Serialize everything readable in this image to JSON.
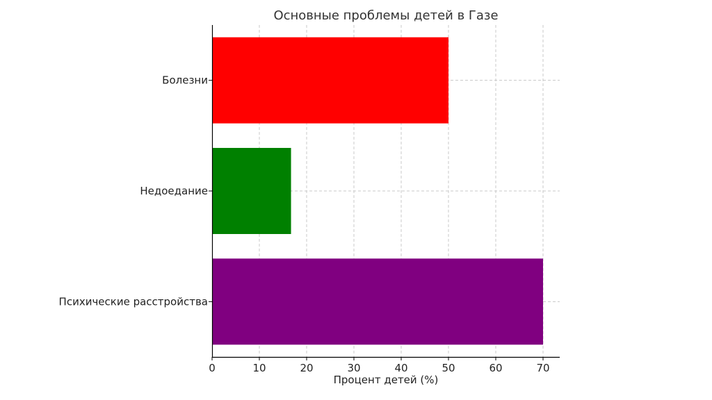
{
  "chart_data": {
    "type": "bar",
    "orientation": "horizontal",
    "title": "Основные проблемы детей в Газе",
    "xlabel": "Процент детей (%)",
    "ylabel": "",
    "categories": [
      "Болезни",
      "Недоедание",
      "Психические расстройства"
    ],
    "values": [
      50,
      16.7,
      70
    ],
    "colors": [
      "#ff0000",
      "#008000",
      "#800080"
    ],
    "xlim": [
      0,
      73.5
    ],
    "xticks": [
      0,
      10,
      20,
      30,
      40,
      50,
      60,
      70
    ],
    "grid": true
  }
}
